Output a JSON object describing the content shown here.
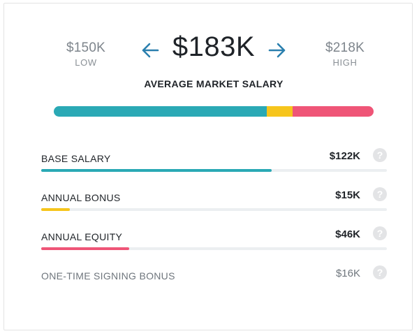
{
  "colors": {
    "base": "#2aa9b5",
    "bonus": "#f6c51c",
    "equity": "#ef5577",
    "arrow": "#2a7fae",
    "track": "#eceff1"
  },
  "range": {
    "low_value": "$150K",
    "low_caption": "LOW",
    "average_value": "$183K",
    "average_caption": "AVERAGE MARKET SALARY",
    "high_value": "$218K",
    "high_caption": "HIGH"
  },
  "icons": {
    "previous": "arrow-left-icon",
    "next": "arrow-right-icon",
    "help": "question-circle-icon"
  },
  "summary_bar": {
    "segments": [
      {
        "name": "base",
        "fraction": 0.665
      },
      {
        "name": "bonus",
        "fraction": 0.081
      },
      {
        "name": "equity",
        "fraction": 0.254
      }
    ]
  },
  "components": [
    {
      "label": "BASE SALARY",
      "value": "$122K",
      "bar_fraction": 0.666
    },
    {
      "label": "ANNUAL BONUS",
      "value": "$15K",
      "bar_fraction": 0.082
    },
    {
      "label": "ANNUAL EQUITY",
      "value": "$46K",
      "bar_fraction": 0.254
    },
    {
      "label": "ONE-TIME SIGNING BONUS",
      "value": "$16K"
    }
  ],
  "help_glyph": "?"
}
